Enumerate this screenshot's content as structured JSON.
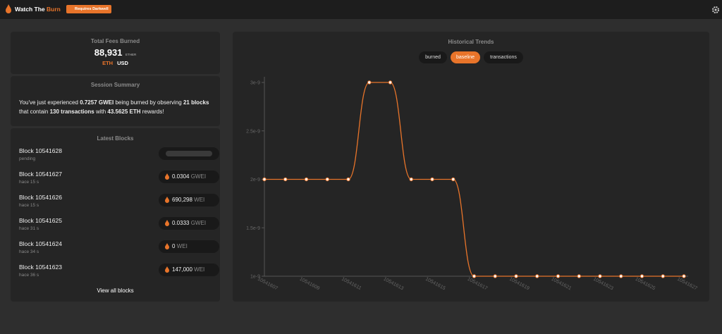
{
  "header": {
    "title_main": "Watch The ",
    "title_accent": "Burn",
    "badge": "Requires Darkwell"
  },
  "fees": {
    "title": "Total Fees Burned",
    "amount": "88,931",
    "unit": "ETHER",
    "currencies": [
      "ETH",
      "USD"
    ]
  },
  "session": {
    "title": "Session Summary",
    "parts": [
      "You've just experienced ",
      "0.7257  GWEI",
      " being burned by observing ",
      "21 blocks",
      " that contain ",
      "130 transactions",
      " with ",
      "43.5625  ETH",
      " rewards!"
    ]
  },
  "blocks": {
    "title": "Latest Blocks",
    "link": "View all blocks",
    "rows": [
      {
        "name": "Block 10541628",
        "age": "pending"
      },
      {
        "name": "Block 10541627",
        "age": "hace 15 s",
        "value": "0.0304",
        "unit": "GWEI"
      },
      {
        "name": "Block 10541626",
        "age": "hace 15 s",
        "value": "690,298",
        "unit": "WEI"
      },
      {
        "name": "Block 10541625",
        "age": "hace 31 s",
        "value": "0.0333",
        "unit": "GWEI"
      },
      {
        "name": "Block 10541624",
        "age": "hace 34 s",
        "value": "0",
        "unit": "WEI"
      },
      {
        "name": "Block 10541623",
        "age": "hace 36 s",
        "value": "147,000",
        "unit": "WEI"
      }
    ]
  },
  "trends": {
    "title": "Historical Trends",
    "tabs": [
      "burned",
      "baseline",
      "transactions"
    ],
    "active_tab": 1
  },
  "chart_data": {
    "type": "line",
    "categories": [
      "10541607",
      null,
      "10541609",
      null,
      "10541611",
      null,
      "10541613",
      null,
      "10541615",
      null,
      "10541617",
      null,
      "10541619",
      null,
      "10541621",
      null,
      "10541623",
      null,
      "10541625",
      null,
      "10541627"
    ],
    "series": [
      {
        "name": "baseline",
        "color": "#e8742a",
        "values": [
          2e-09,
          2e-09,
          2e-09,
          2e-09,
          2e-09,
          3e-09,
          3e-09,
          2e-09,
          2e-09,
          2e-09,
          1e-09,
          1e-09,
          1e-09,
          1e-09,
          1e-09,
          1e-09,
          1e-09,
          1e-09,
          1e-09,
          1e-09,
          1e-09
        ]
      }
    ],
    "ylim": [
      1e-09,
      3e-09
    ],
    "yticks": [
      1e-09,
      1.5e-09,
      2e-09,
      2.5e-09,
      3e-09
    ],
    "grid": false
  }
}
